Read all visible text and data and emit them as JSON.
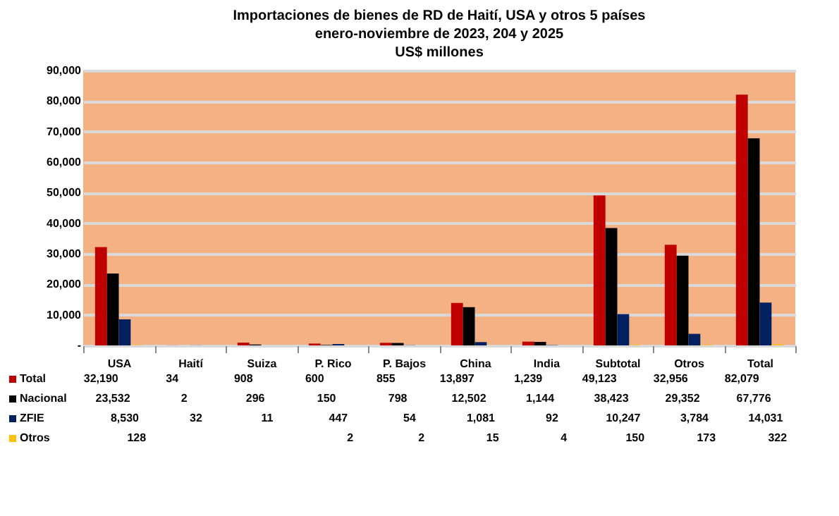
{
  "chart_data": {
    "type": "bar",
    "title": "Importaciones de bienes de RD de Haití, USA y otros 5 países\nenero-noviembre de 2023, 204 y 2025\nUS$ millones",
    "categories": [
      "USA",
      "Haití",
      "Suiza",
      "P. Rico",
      "P. Bajos",
      "China",
      "India",
      "Subtotal",
      "Otros",
      "Total"
    ],
    "series": [
      {
        "name": "Total",
        "color": "#c00000",
        "values": [
          32190,
          34,
          908,
          600,
          855,
          13897,
          1239,
          49123,
          32956,
          82079
        ],
        "value_labels": [
          "32,190",
          "34",
          "908",
          "600",
          "855",
          "13,897",
          "1,239",
          "49,123",
          "32,956",
          "82,079"
        ]
      },
      {
        "name": "Nacional",
        "color": "#000000",
        "values": [
          23532,
          2,
          296,
          150,
          798,
          12502,
          1144,
          38423,
          29352,
          67776
        ],
        "value_labels": [
          "23,532",
          "2",
          "296",
          "150",
          "798",
          "12,502",
          "1,144",
          "38,423",
          "29,352",
          "67,776"
        ]
      },
      {
        "name": "ZFIE",
        "color": "#002060",
        "values": [
          8530,
          32,
          11,
          447,
          54,
          1081,
          92,
          10247,
          3784,
          14031
        ],
        "value_labels": [
          "8,530",
          "32",
          "11",
          "447",
          "54",
          "1,081",
          "92",
          "10,247",
          "3,784",
          "14,031"
        ]
      },
      {
        "name": "Otros",
        "color": "#ffc000",
        "values": [
          128,
          null,
          null,
          2,
          2,
          15,
          4,
          150,
          173,
          322
        ],
        "value_labels": [
          "128",
          null,
          null,
          "2",
          "2",
          "15",
          "4",
          "150",
          "173",
          "322"
        ]
      }
    ],
    "ylim": [
      0,
      90000
    ],
    "yticks": [
      {
        "value": 0,
        "label": "-"
      },
      {
        "value": 10000,
        "label": "10,000"
      },
      {
        "value": 20000,
        "label": "20,000"
      },
      {
        "value": 30000,
        "label": "30,000"
      },
      {
        "value": 40000,
        "label": "40,000"
      },
      {
        "value": 50000,
        "label": "50,000"
      },
      {
        "value": 60000,
        "label": "60,000"
      },
      {
        "value": 70000,
        "label": "70,000"
      },
      {
        "value": 80000,
        "label": "80,000"
      },
      {
        "value": 90000,
        "label": "90,000"
      }
    ],
    "grid": "y",
    "legend": "bottom left"
  }
}
